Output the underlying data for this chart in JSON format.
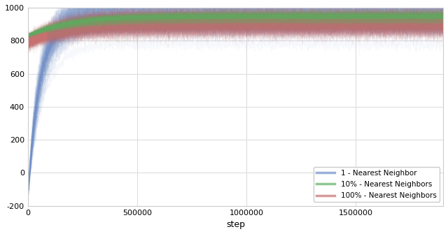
{
  "title": "",
  "xlabel": "step",
  "ylabel": "",
  "xlim": [
    0,
    1900000
  ],
  "ylim": [
    -200,
    1000
  ],
  "yticks": [
    -200,
    0,
    200,
    400,
    600,
    800,
    1000
  ],
  "xticks": [
    0,
    500000,
    1000000,
    1500000
  ],
  "xtick_labels": [
    "0",
    "500000",
    "1000000",
    "1500000"
  ],
  "background_color": "#ffffff",
  "grid_color": "#dddddd",
  "legend_labels": [
    "1 - Nearest Neighbor",
    "10% - Nearest Neighbors",
    "100% - Nearest Neighbors"
  ],
  "blue_color": "#7090c8",
  "green_color": "#60b060",
  "red_color": "#c87070",
  "n_steps": 2000000,
  "n_points": 3000,
  "blue_start": -150,
  "blue_plateau": 940,
  "blue_tau": 55000,
  "blue_noise": 18,
  "blue_n_runs": 120,
  "blue_run_noise": 55,
  "green_start": 830,
  "green_plateau": 945,
  "green_tau": 200000,
  "green_noise": 6,
  "green_n_runs": 40,
  "green_run_noise": 15,
  "red_start": 790,
  "red_plateau": 910,
  "red_tau": 150000,
  "red_noise": 22,
  "red_n_runs": 100,
  "red_run_noise": 35
}
